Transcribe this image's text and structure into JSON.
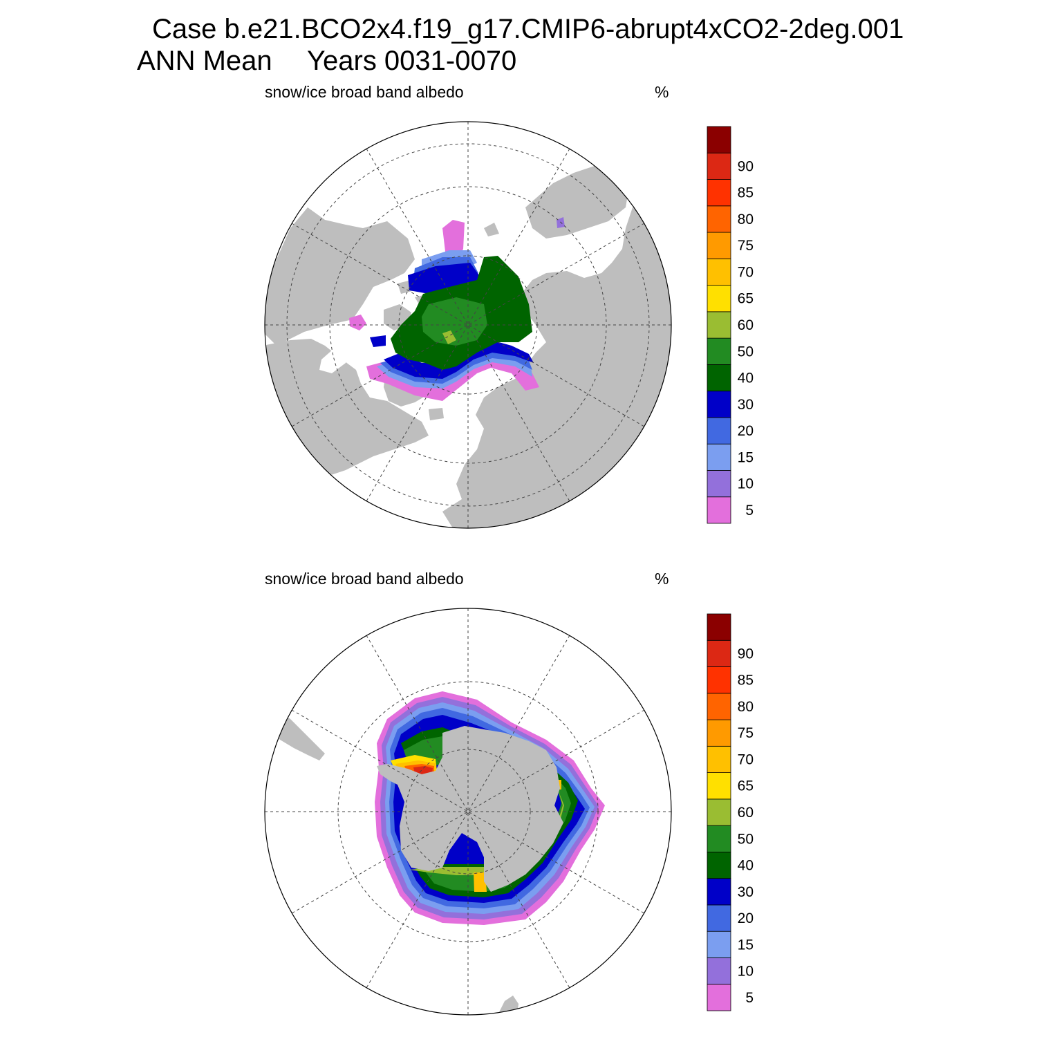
{
  "title": {
    "case_line": "Case b.e21.BCO2x4.f19_g17.CMIP6-abrupt4xCO2-2deg.001",
    "season": "ANN Mean",
    "years": "Years 0031-0070"
  },
  "panels": [
    {
      "id": "north",
      "hemisphere": "Northern Hemisphere (polar stereographic)",
      "variable_label": "snow/ice broad band albedo",
      "units": "%"
    },
    {
      "id": "south",
      "hemisphere": "Southern Hemisphere (polar stereographic)",
      "variable_label": "snow/ice broad band albedo",
      "units": "%"
    }
  ],
  "colorbar": {
    "levels": [
      "5",
      "10",
      "15",
      "20",
      "30",
      "40",
      "50",
      "60",
      "65",
      "70",
      "75",
      "80",
      "85",
      "90"
    ],
    "colors": [
      "#e36fdc",
      "#9370db",
      "#7b9ef0",
      "#4169e1",
      "#0000c8",
      "#006400",
      "#228b22",
      "#9abd32",
      "#ffe000",
      "#ffc000",
      "#ff9a00",
      "#ff6400",
      "#ff3200",
      "#dc2814",
      "#8b0000"
    ]
  },
  "colors": {
    "land": "#bebebe",
    "ocean": "#ffffff",
    "grid": "#444444"
  }
}
